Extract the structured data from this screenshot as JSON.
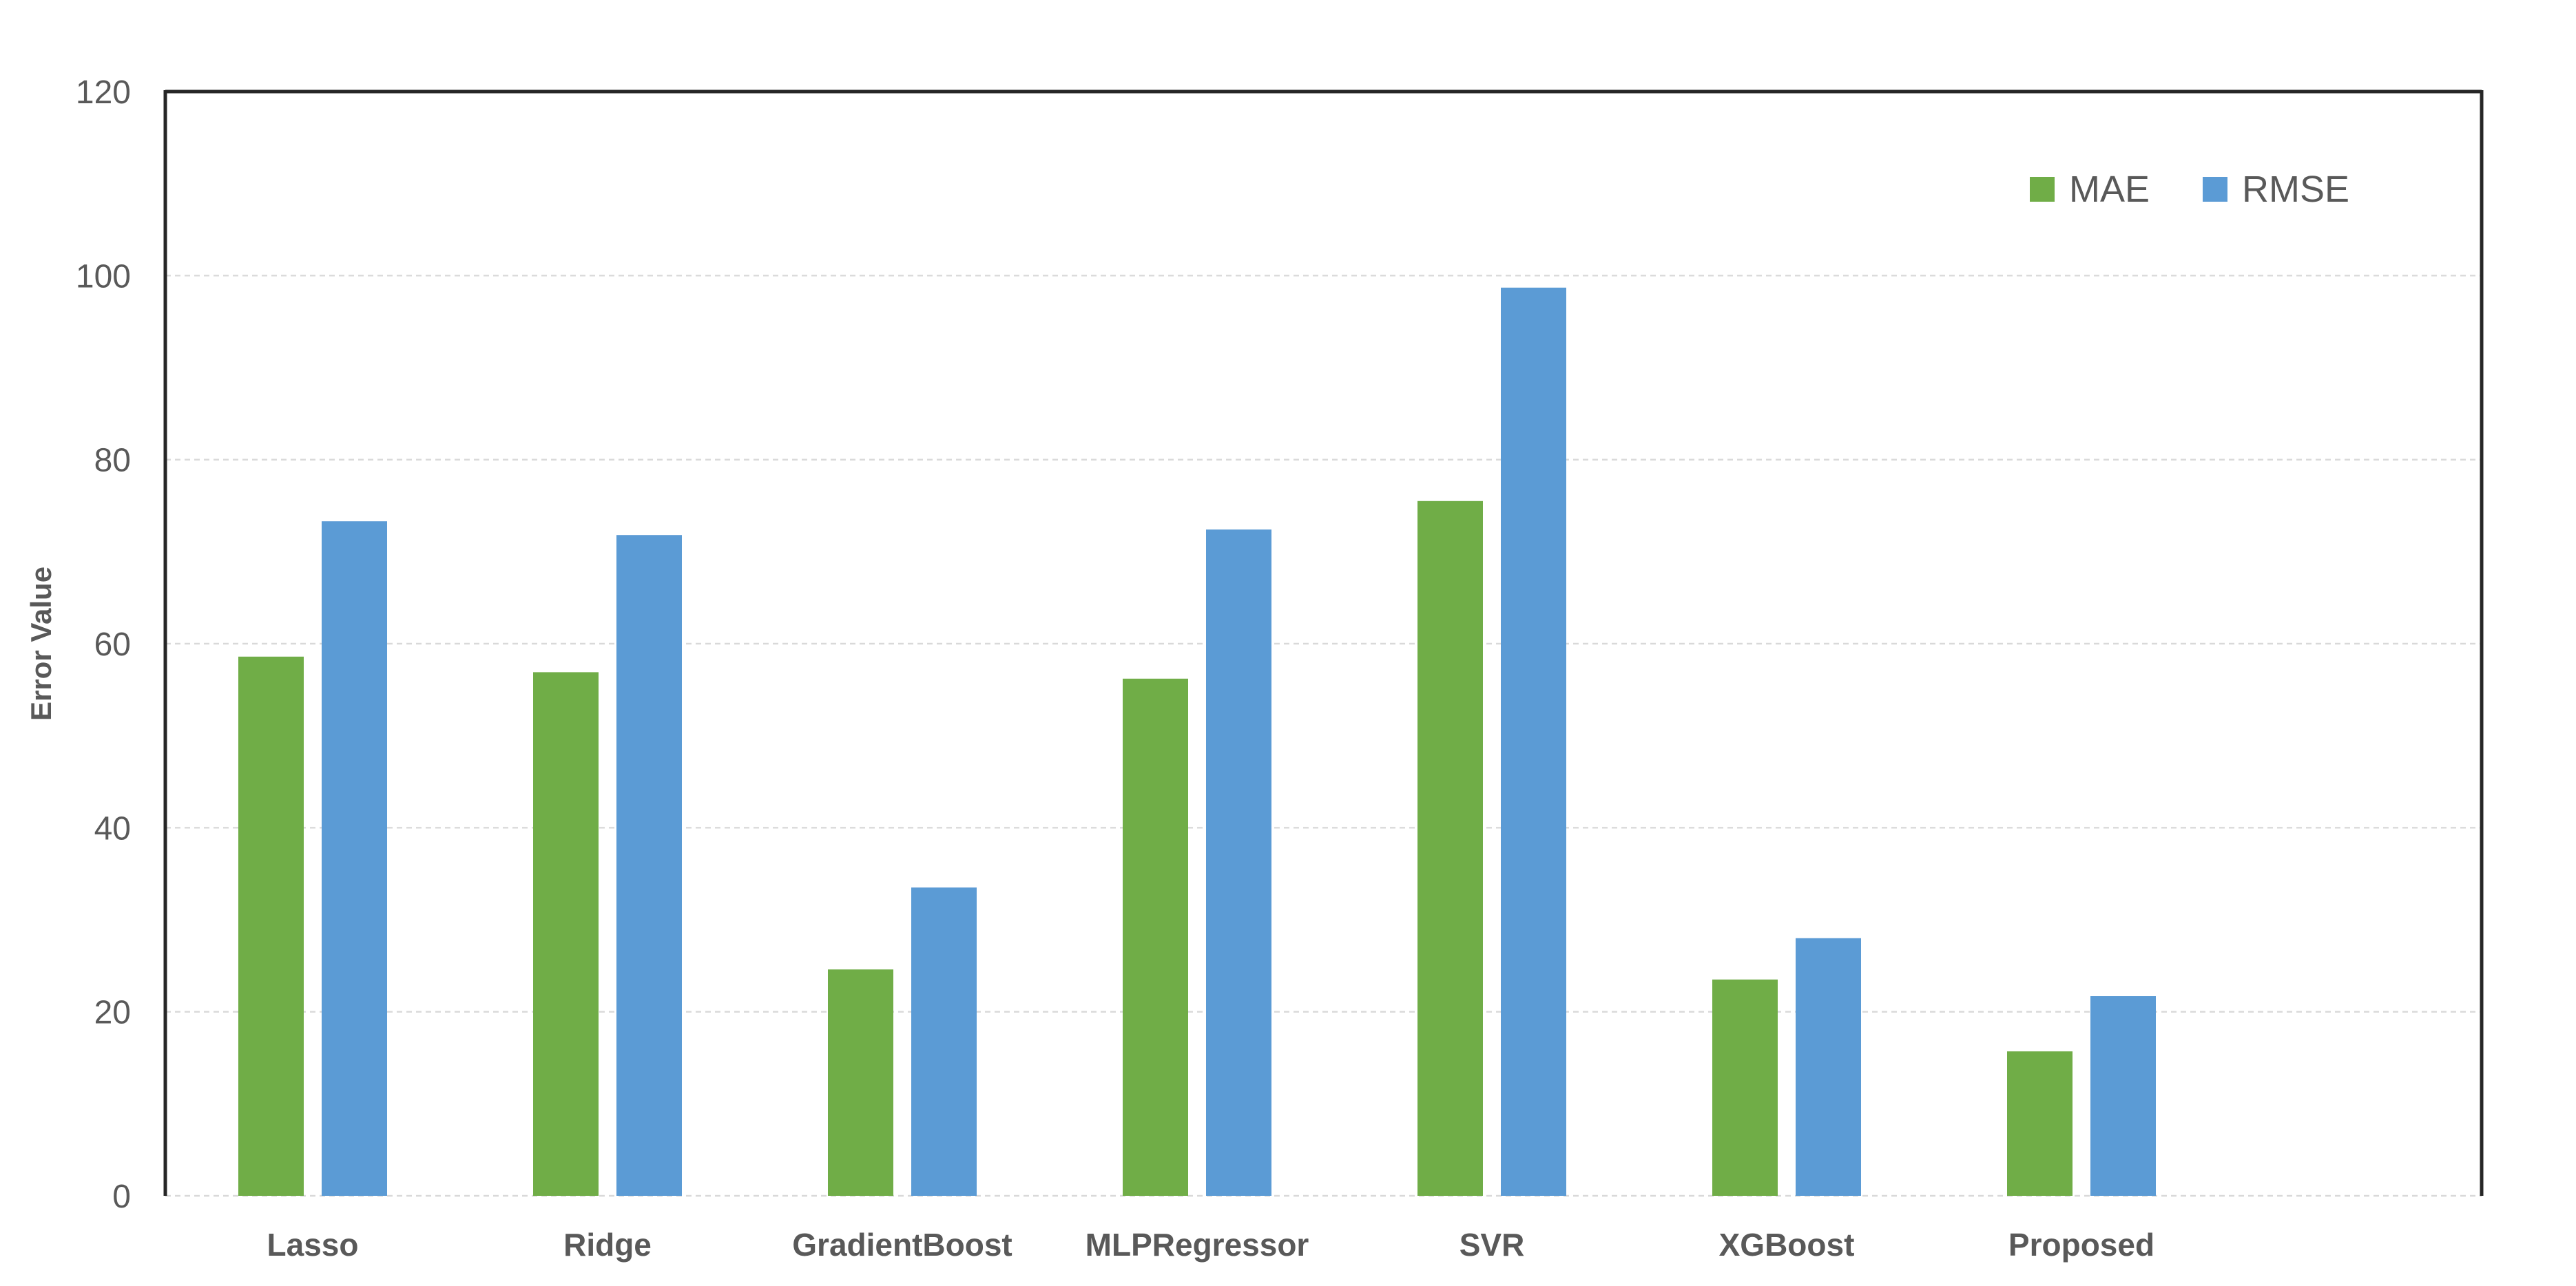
{
  "figure": {
    "background": "#FFFFFF"
  },
  "chart_data": {
    "type": "bar",
    "title": "",
    "categories": [
      "Lasso",
      "Ridge",
      "GradientBoost",
      "MLPRegressor",
      "SVR",
      "XGBoost",
      "Proposed"
    ],
    "series": [
      {
        "name": "MAE",
        "color": "#70AD47",
        "values": [
          58.6,
          56.9,
          24.6,
          56.2,
          75.5,
          23.5,
          15.7
        ]
      },
      {
        "name": "RMSE",
        "color": "#5B9BD5",
        "values": [
          73.3,
          71.8,
          33.5,
          72.4,
          98.7,
          28.0,
          21.7
        ]
      }
    ],
    "xlabel": "",
    "ylabel": "Error Value",
    "ylim": [
      0,
      120
    ],
    "yticks": [
      0,
      20,
      40,
      60,
      80,
      100,
      120
    ],
    "grid": true,
    "gridline_color": "#D9D9D9",
    "axis_border_color": "#262626",
    "text_color": "#595959",
    "legend": {
      "position": "top-right"
    }
  }
}
